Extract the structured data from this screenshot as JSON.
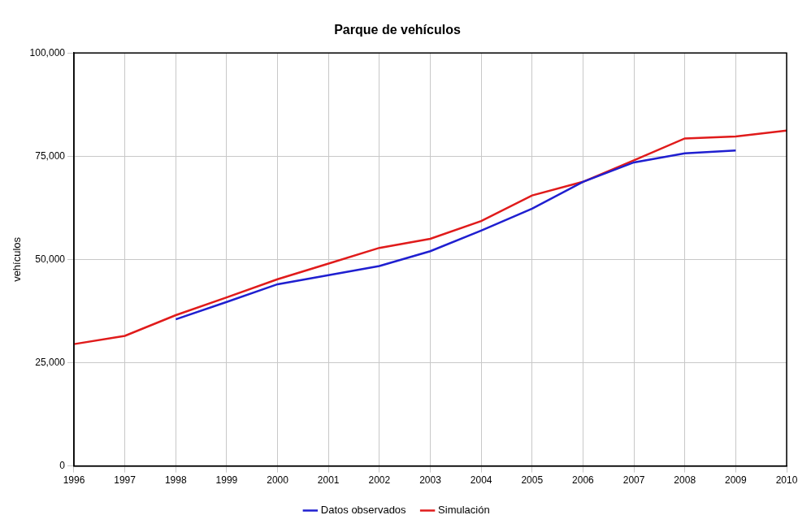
{
  "chart_data": {
    "type": "line",
    "title": "Parque de vehículos",
    "y_label": "vehículos",
    "x": [
      1996,
      1997,
      1998,
      1999,
      2000,
      2001,
      2002,
      2003,
      2004,
      2005,
      2006,
      2007,
      2008,
      2009,
      2010
    ],
    "xlim": [
      1996,
      2010
    ],
    "xticks": [
      1996,
      1997,
      1998,
      1999,
      2000,
      2001,
      2002,
      2003,
      2004,
      2005,
      2006,
      2007,
      2008,
      2009,
      2010
    ],
    "ylim": [
      0,
      100000
    ],
    "yticks": [
      0,
      {
        "value": 25000,
        "label": "25,000"
      },
      {
        "value": 50000,
        "label": "50,000"
      },
      {
        "value": 75000,
        "label": "75,000"
      },
      {
        "value": 100000,
        "label": "100,000"
      }
    ],
    "grid": true,
    "legend": "bottom",
    "series": [
      {
        "name": "Datos observados",
        "color": "#1f1fd0",
        "values": [
          null,
          null,
          35500,
          39700,
          44000,
          46200,
          48400,
          52000,
          57000,
          62300,
          68800,
          73500,
          75700,
          76400,
          null
        ]
      },
      {
        "name": "Simulación",
        "color": "#e01b1b",
        "values": [
          29500,
          31500,
          36500,
          40800,
          45200,
          49000,
          52800,
          55000,
          59300,
          65500,
          68800,
          74000,
          79300,
          79800,
          81200
        ]
      }
    ]
  }
}
